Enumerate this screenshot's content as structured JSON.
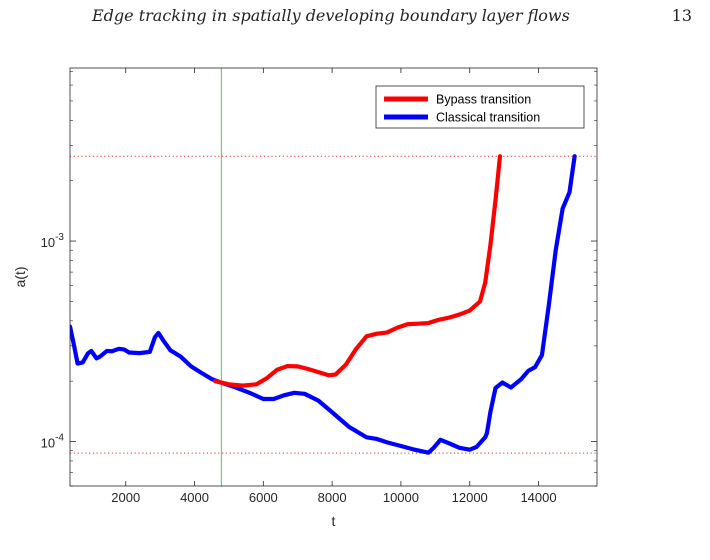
{
  "page": {
    "running_head": "Edge tracking in spatially developing boundary layer flows",
    "page_number": "13"
  },
  "chart_data": {
    "type": "line",
    "xlabel": "t",
    "ylabel": "a(t)",
    "xlim": [
      380,
      15700
    ],
    "ylim": [
      6e-05,
      0.0073
    ],
    "yscale": "log",
    "x_ticks": [
      2000,
      4000,
      6000,
      8000,
      10000,
      12000,
      14000
    ],
    "x_tick_labels": [
      "2000",
      "4000",
      "6000",
      "8000",
      "10000",
      "12000",
      "14000"
    ],
    "y_ticks": [
      0.001,
      0.0001
    ],
    "y_tick_labels": [
      {
        "base": "10",
        "exp": "-3"
      },
      {
        "base": "10",
        "exp": "-4"
      }
    ],
    "grid": false,
    "legend_position": "top-right",
    "vertical_line": {
      "x": 4780,
      "color": "#33dd33"
    },
    "horizontal_reference_lines": [
      {
        "y": 0.00265,
        "color": "#e03030",
        "style": "dotted"
      },
      {
        "y": 8.75e-05,
        "color": "#e03030",
        "style": "dotted"
      }
    ],
    "series": [
      {
        "name": "Bypass transition",
        "color": "#ff0000",
        "points": [
          [
            4600,
            0.0002
          ],
          [
            5000,
            0.000193
          ],
          [
            5400,
            0.00019
          ],
          [
            5800,
            0.000193
          ],
          [
            6100,
            0.000207
          ],
          [
            6400,
            0.000228
          ],
          [
            6700,
            0.000238
          ],
          [
            7000,
            0.000237
          ],
          [
            7300,
            0.00023
          ],
          [
            7600,
            0.000222
          ],
          [
            7900,
            0.000214
          ],
          [
            8100,
            0.000216
          ],
          [
            8400,
            0.000242
          ],
          [
            8700,
            0.00029
          ],
          [
            9000,
            0.000335
          ],
          [
            9300,
            0.000345
          ],
          [
            9600,
            0.00035
          ],
          [
            9900,
            0.00037
          ],
          [
            10200,
            0.000385
          ],
          [
            10500,
            0.000387
          ],
          [
            10800,
            0.00039
          ],
          [
            11100,
            0.000405
          ],
          [
            11400,
            0.000415
          ],
          [
            11700,
            0.00043
          ],
          [
            12000,
            0.00045
          ],
          [
            12300,
            0.0005
          ],
          [
            12450,
            0.00062
          ],
          [
            12600,
            0.00095
          ],
          [
            12750,
            0.0016
          ],
          [
            12880,
            0.00265
          ]
        ]
      },
      {
        "name": "Classical transition",
        "color": "#0000ff",
        "points": [
          [
            380,
            0.000375
          ],
          [
            500,
            0.0003
          ],
          [
            600,
            0.000245
          ],
          [
            750,
            0.000248
          ],
          [
            900,
            0.000275
          ],
          [
            1000,
            0.000283
          ],
          [
            1150,
            0.00026
          ],
          [
            1250,
            0.000265
          ],
          [
            1450,
            0.000283
          ],
          [
            1600,
            0.000282
          ],
          [
            1800,
            0.00029
          ],
          [
            1950,
            0.000288
          ],
          [
            2100,
            0.000278
          ],
          [
            2400,
            0.000276
          ],
          [
            2700,
            0.00028
          ],
          [
            2850,
            0.000332
          ],
          [
            2950,
            0.000348
          ],
          [
            3100,
            0.000318
          ],
          [
            3300,
            0.000285
          ],
          [
            3600,
            0.000265
          ],
          [
            3900,
            0.000237
          ],
          [
            4200,
            0.00022
          ],
          [
            4500,
            0.000205
          ],
          [
            4800,
            0.000196
          ],
          [
            5200,
            0.000186
          ],
          [
            5600,
            0.000175
          ],
          [
            6000,
            0.000163
          ],
          [
            6300,
            0.000163
          ],
          [
            6600,
            0.00017
          ],
          [
            6900,
            0.000175
          ],
          [
            7200,
            0.000173
          ],
          [
            7600,
            0.00016
          ],
          [
            8000,
            0.00014
          ],
          [
            8500,
            0.000118
          ],
          [
            9000,
            0.000105
          ],
          [
            9300,
            0.000103
          ],
          [
            9600,
            9.9e-05
          ],
          [
            10000,
            9.5e-05
          ],
          [
            10400,
            9.1e-05
          ],
          [
            10800,
            8.8e-05
          ],
          [
            10950,
            9.3e-05
          ],
          [
            11150,
            0.000102
          ],
          [
            11400,
            9.8e-05
          ],
          [
            11700,
            9.3e-05
          ],
          [
            12000,
            9.1e-05
          ],
          [
            12200,
            9.4e-05
          ],
          [
            12450,
            0.000105
          ],
          [
            12500,
            0.00011
          ],
          [
            12600,
            0.00014
          ],
          [
            12750,
            0.000185
          ],
          [
            12950,
            0.000197
          ],
          [
            13200,
            0.000186
          ],
          [
            13500,
            0.000205
          ],
          [
            13700,
            0.000225
          ],
          [
            13900,
            0.000235
          ],
          [
            14100,
            0.00027
          ],
          [
            14300,
            0.00048
          ],
          [
            14500,
            0.0009
          ],
          [
            14700,
            0.00145
          ],
          [
            14900,
            0.00175
          ],
          [
            15050,
            0.00265
          ]
        ]
      }
    ]
  }
}
